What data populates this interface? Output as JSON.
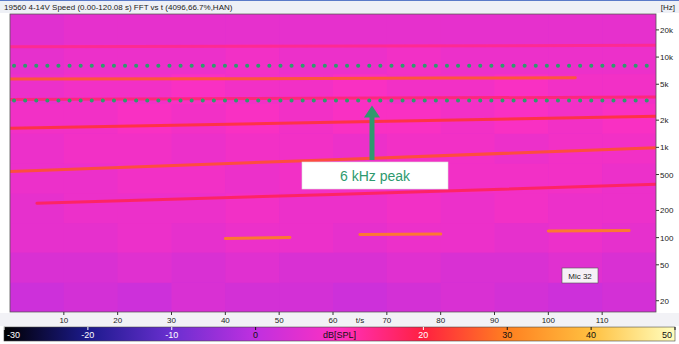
{
  "chart_data": {
    "type": "heatmap",
    "title": "19560 4-14V Speed (0.00-120.08 s) FFT vs t (4096,66.7%,HAN)",
    "x_label": "t/s",
    "y_label": "[Hz]",
    "log": "y",
    "xlim": [
      0,
      120
    ],
    "ylim": [
      15,
      30000
    ],
    "xticks": [
      10,
      20,
      30,
      40,
      50,
      60,
      70,
      80,
      90,
      100,
      110
    ],
    "yticks": [
      {
        "value": 20000,
        "label": "20k"
      },
      {
        "value": 10000,
        "label": "10k"
      },
      {
        "value": 5000,
        "label": "5k"
      },
      {
        "value": 2000,
        "label": "2k"
      },
      {
        "value": 1000,
        "label": "1k"
      },
      500,
      200,
      100,
      50,
      20
    ],
    "x_edges": [
      0,
      10,
      20,
      30,
      40,
      50,
      60,
      70,
      80,
      90,
      100,
      110,
      120
    ],
    "y_edges": [
      15,
      32,
      69,
      147,
      313,
      670,
      1430,
      3060,
      6540,
      14000,
      30000
    ],
    "cells": [
      [
        2,
        3,
        2,
        4,
        3,
        3,
        2,
        3,
        4,
        3,
        2,
        3
      ],
      [
        4,
        4,
        5,
        4,
        5,
        4,
        4,
        5,
        4,
        4,
        5,
        4
      ],
      [
        6,
        6,
        7,
        6,
        7,
        7,
        6,
        7,
        7,
        6,
        7,
        6
      ],
      [
        6,
        7,
        7,
        7,
        8,
        7,
        7,
        8,
        7,
        8,
        7,
        7
      ],
      [
        7,
        7,
        8,
        8,
        7,
        8,
        8,
        7,
        8,
        8,
        8,
        7
      ],
      [
        7,
        8,
        8,
        7,
        8,
        8,
        7,
        8,
        8,
        7,
        8,
        8
      ],
      [
        8,
        8,
        9,
        8,
        9,
        8,
        9,
        9,
        8,
        9,
        8,
        9
      ],
      [
        7,
        8,
        8,
        9,
        8,
        8,
        9,
        8,
        8,
        9,
        8,
        8
      ],
      [
        6,
        7,
        7,
        7,
        8,
        7,
        7,
        8,
        7,
        7,
        7,
        7
      ],
      [
        5,
        6,
        6,
        6,
        6,
        6,
        6,
        6,
        6,
        6,
        6,
        6
      ]
    ],
    "tracks": [
      {
        "x": [
          0,
          40,
          80,
          105
        ],
        "y": [
          5700,
          5750,
          5850,
          5900
        ],
        "level": 26
      },
      {
        "x": [
          0,
          120
        ],
        "y": [
          3400,
          3600
        ],
        "level": 16
      },
      {
        "x": [
          0,
          120
        ],
        "y": [
          13000,
          13500
        ],
        "level": 14
      },
      {
        "x": [
          0,
          60,
          120
        ],
        "y": [
          1630,
          1900,
          2210
        ],
        "level": 22
      },
      {
        "x": [
          0,
          60,
          120
        ],
        "y": [
          540,
          730,
          990
        ],
        "level": 25
      },
      {
        "x": [
          5,
          60,
          120
        ],
        "y": [
          240,
          300,
          390
        ],
        "level": 18
      },
      {
        "x": [
          40,
          52
        ],
        "y": [
          98,
          100
        ],
        "level": 30
      },
      {
        "x": [
          65,
          80
        ],
        "y": [
          108,
          110
        ],
        "level": 30
      },
      {
        "x": [
          100,
          115
        ],
        "y": [
          118,
          120
        ],
        "level": 30
      }
    ],
    "colorbar": {
      "range": [
        -30,
        50
      ],
      "ticks": [
        -30,
        -20,
        -10,
        0,
        20,
        30,
        40,
        50
      ],
      "label": "dB[SPL]"
    },
    "annotations": [
      {
        "text": "6 kHz peak",
        "band": [
          3300,
          8000
        ]
      },
      {
        "text": "Mic 32"
      }
    ]
  }
}
